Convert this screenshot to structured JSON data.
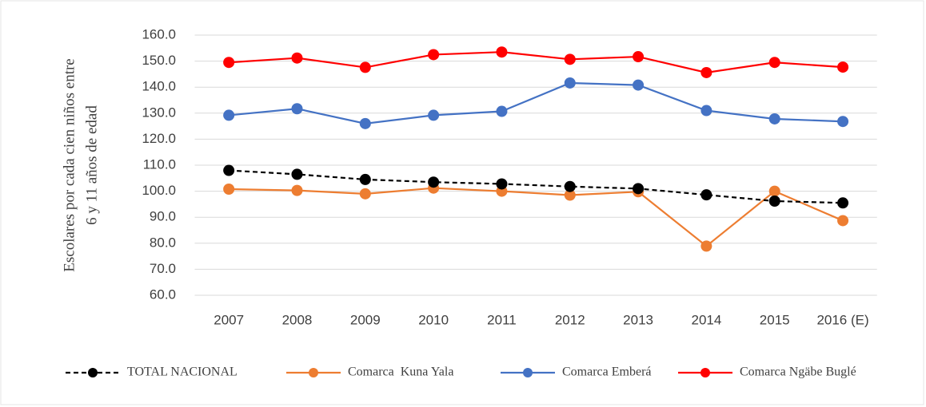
{
  "chart_data": {
    "type": "line",
    "ylabel": [
      "Escolares por cada cien niños entre",
      "6 y 11 años de edad"
    ],
    "categories": [
      "2007",
      "2008",
      "2009",
      "2010",
      "2011",
      "2012",
      "2013",
      "2014",
      "2015",
      "2016 (E)"
    ],
    "series": [
      {
        "name": "TOTAL NACIONAL",
        "color": "#000000",
        "style": "dashed",
        "values": [
          108.0,
          106.5,
          104.5,
          103.5,
          102.8,
          101.8,
          101.0,
          98.6,
          96.2,
          95.5
        ]
      },
      {
        "name": "Comarca  Kuna Yala",
        "color": "#ed7d31",
        "style": "solid",
        "values": [
          100.8,
          100.3,
          99.0,
          101.2,
          100.0,
          98.5,
          99.8,
          78.9,
          100.0,
          88.7
        ]
      },
      {
        "name": "Comarca Emberá",
        "color": "#4472c4",
        "style": "solid",
        "values": [
          129.2,
          131.7,
          126.0,
          129.2,
          130.7,
          141.6,
          140.8,
          131.0,
          127.8,
          126.8
        ]
      },
      {
        "name": "Comarca Ngäbe Buglé",
        "color": "#ff0000",
        "style": "solid",
        "values": [
          149.5,
          151.2,
          147.6,
          152.5,
          153.5,
          150.7,
          151.7,
          145.6,
          149.5,
          147.7
        ]
      }
    ],
    "ylim": [
      60,
      160
    ],
    "yticks": [
      {
        "value": 60,
        "label": "60.0"
      },
      {
        "value": 70,
        "label": "70.0"
      },
      {
        "value": 80,
        "label": "80.0"
      },
      {
        "value": 90,
        "label": "90.0"
      },
      {
        "value": 100,
        "label": "100.0"
      },
      {
        "value": 110,
        "label": "110.0"
      },
      {
        "value": 120,
        "label": "120.0"
      },
      {
        "value": 130,
        "label": "130.0"
      },
      {
        "value": 140,
        "label": "140.0"
      },
      {
        "value": 150,
        "label": "150.0"
      },
      {
        "value": 160,
        "label": "160.0"
      }
    ],
    "grid": true,
    "legend": "bottom"
  }
}
